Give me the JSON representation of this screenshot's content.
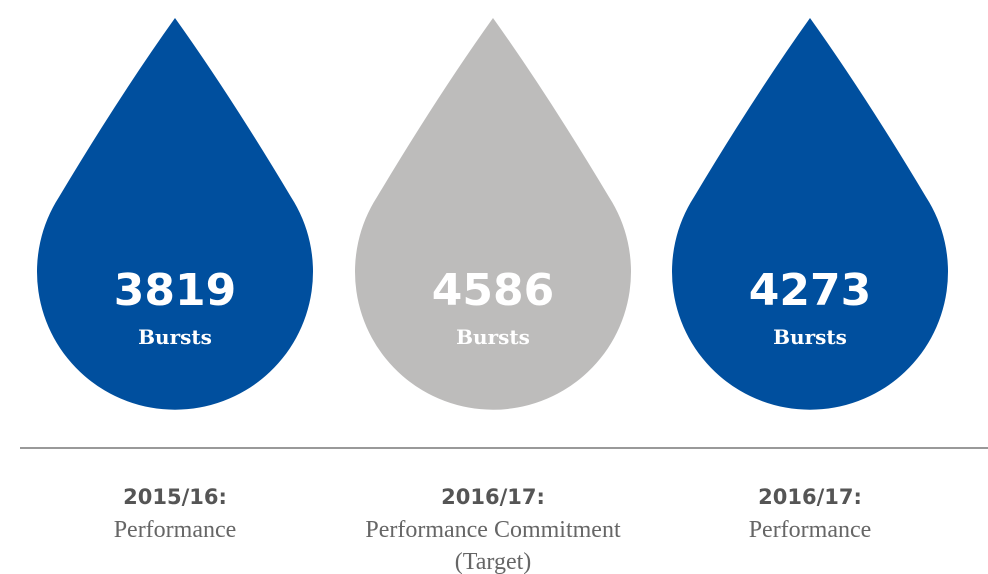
{
  "items": [
    {
      "value": "3819",
      "unit": "Bursts",
      "period": "2015/16:",
      "label": [
        "Performance"
      ],
      "color": "#004f9e"
    },
    {
      "value": "4586",
      "unit": "Bursts",
      "period": "2016/17:",
      "label": [
        "Performance Commitment",
        "(Target)"
      ],
      "color": "#bdbcbb"
    },
    {
      "value": "4273",
      "unit": "Bursts",
      "period": "2016/17:",
      "label": [
        "Performance"
      ],
      "color": "#004f9e"
    }
  ]
}
